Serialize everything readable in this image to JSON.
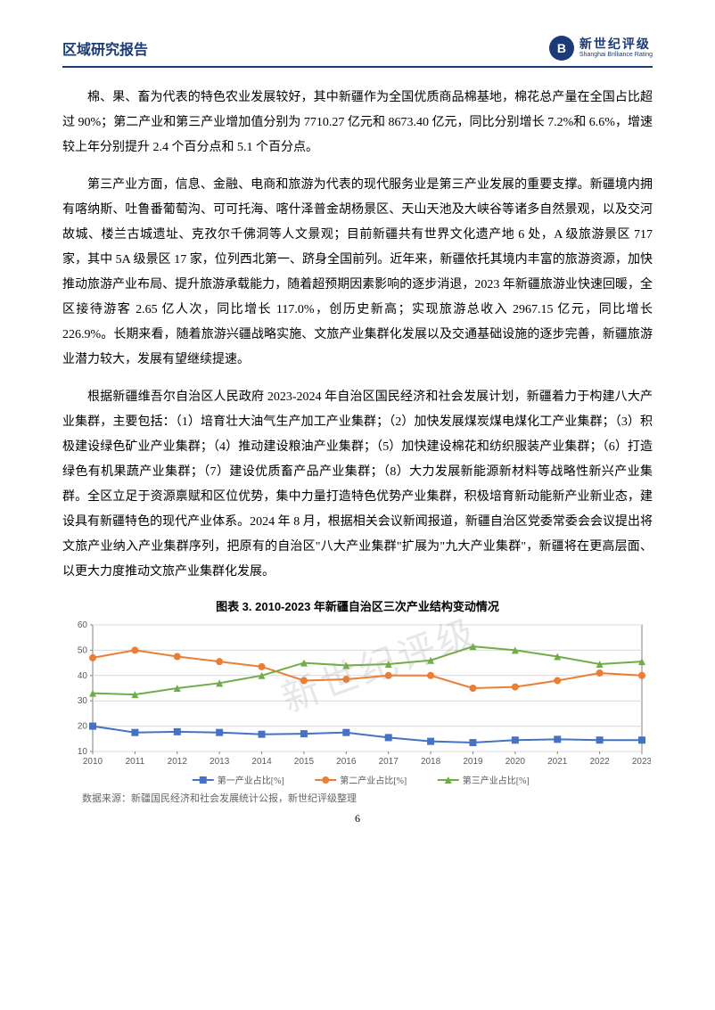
{
  "header": {
    "title": "区域研究报告",
    "logo_cn": "新世纪评级",
    "logo_en": "Shanghai Brilliance Rating",
    "logo_glyph": "B"
  },
  "paragraphs": {
    "p1": "棉、果、畜为代表的特色农业发展较好，其中新疆作为全国优质商品棉基地，棉花总产量在全国占比超过 90%；第二产业和第三产业增加值分别为 7710.27 亿元和 8673.40 亿元，同比分别增长 7.2%和 6.6%，增速较上年分别提升 2.4 个百分点和 5.1 个百分点。",
    "p2": "第三产业方面，信息、金融、电商和旅游为代表的现代服务业是第三产业发展的重要支撑。新疆境内拥有喀纳斯、吐鲁番葡萄沟、可可托海、喀什泽普金胡杨景区、天山天池及大峡谷等诸多自然景观，以及交河故城、楼兰古城遗址、克孜尔千佛洞等人文景观；目前新疆共有世界文化遗产地 6 处，A 级旅游景区 717 家，其中 5A 级景区 17 家，位列西北第一、跻身全国前列。近年来，新疆依托其境内丰富的旅游资源，加快推动旅游产业布局、提升旅游承载能力，随着超预期因素影响的逐步消退，2023 年新疆旅游业快速回暖，全区接待游客 2.65 亿人次，同比增长 117.0%，创历史新高；实现旅游总收入 2967.15 亿元，同比增长 226.9%。长期来看，随着旅游兴疆战略实施、文旅产业集群化发展以及交通基础设施的逐步完善，新疆旅游业潜力较大，发展有望继续提速。",
    "p3": "根据新疆维吾尔自治区人民政府 2023-2024 年自治区国民经济和社会发展计划，新疆着力于构建八大产业集群，主要包括：（1）培育壮大油气生产加工产业集群；（2）加快发展煤炭煤电煤化工产业集群；（3）积极建设绿色矿业产业集群；（4）推动建设粮油产业集群；（5）加快建设棉花和纺织服装产业集群；（6）打造绿色有机果蔬产业集群；（7）建设优质畜产品产业集群；（8）大力发展新能源新材料等战略性新兴产业集群。全区立足于资源禀赋和区位优势，集中力量打造特色优势产业集群，积极培育新动能新产业新业态，建设具有新疆特色的现代产业体系。2024 年 8 月，根据相关会议新闻报道，新疆自治区党委常委会会议提出将文旅产业纳入产业集群序列，把原有的自治区\"八大产业集群\"扩展为\"九大产业集群\"，新疆将在更高层面、以更大力度推动文旅产业集群化发展。"
  },
  "chart": {
    "type": "line",
    "title": "图表 3. 2010-2023 年新疆自治区三次产业结构变动情况",
    "categories": [
      "2010",
      "2011",
      "2012",
      "2013",
      "2014",
      "2015",
      "2016",
      "2017",
      "2018",
      "2019",
      "2020",
      "2021",
      "2022",
      "2023"
    ],
    "series": [
      {
        "name": "第一产业占比[%]",
        "color": "#4472c4",
        "marker": "square",
        "values": [
          20.0,
          17.5,
          17.8,
          17.5,
          16.8,
          17.0,
          17.5,
          15.5,
          14.0,
          13.5,
          14.5,
          14.8,
          14.5,
          14.5
        ]
      },
      {
        "name": "第二产业占比[%]",
        "color": "#ed7d31",
        "marker": "circle",
        "values": [
          47.0,
          50.0,
          47.5,
          45.5,
          43.5,
          38.0,
          38.5,
          40.0,
          40.0,
          35.0,
          35.5,
          38.0,
          41.0,
          40.0
        ]
      },
      {
        "name": "第三产业占比[%]",
        "color": "#70ad47",
        "marker": "triangle",
        "values": [
          33.0,
          32.5,
          35.0,
          37.0,
          40.0,
          45.0,
          44.0,
          44.5,
          46.0,
          51.5,
          50.0,
          47.5,
          44.5,
          45.5
        ]
      }
    ],
    "ylim": [
      10,
      60
    ],
    "ytick_step": 10,
    "background_color": "#ffffff",
    "grid_color": "#d9d9d9",
    "axis_color": "#808080",
    "label_fontsize": 10,
    "legend_fontsize": 10,
    "line_width": 2,
    "marker_size": 4,
    "plot_border_color": "#808080"
  },
  "data_source": "数据来源：新疆国民经济和社会发展统计公报，新世纪评级整理",
  "page_number": "6",
  "watermark": "新世纪评级"
}
